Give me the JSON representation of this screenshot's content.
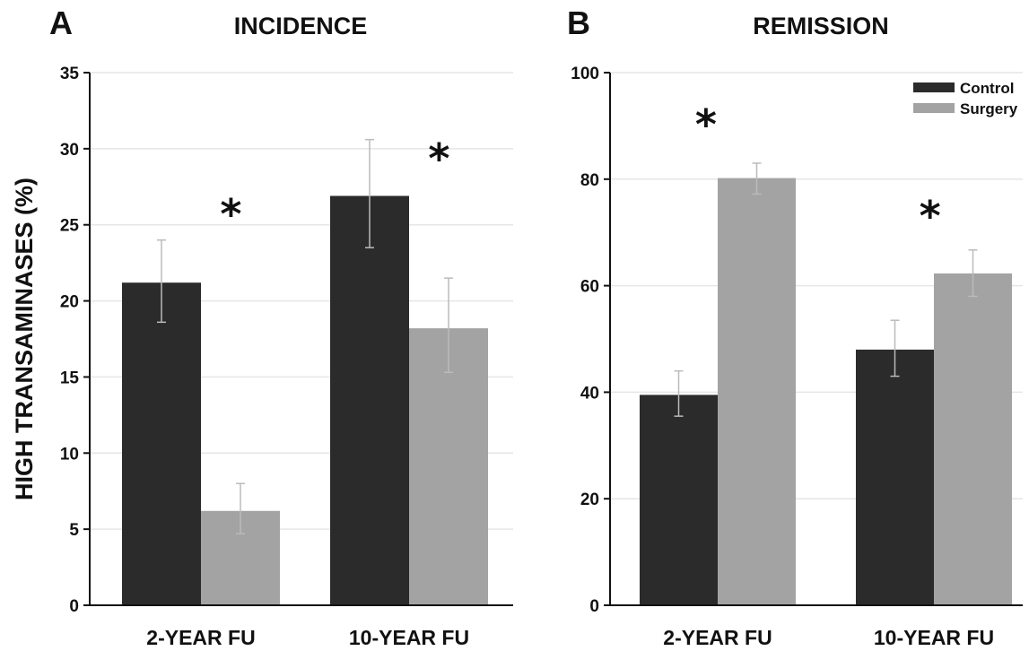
{
  "colors": {
    "control": "#2b2b2b",
    "surgery": "#a3a3a3"
  },
  "chart_data": [
    {
      "type": "bar",
      "panel": "A",
      "title": "INCIDENCE",
      "ylabel": "HIGH TRANSAMINASES (%)",
      "xlabel": "",
      "categories": [
        "2-YEAR FU",
        "10-YEAR FU"
      ],
      "ylim": [
        0,
        35
      ],
      "yticks": [
        0,
        5,
        10,
        15,
        20,
        25,
        30,
        35
      ],
      "grid": true,
      "series": [
        {
          "values": [
            21.2,
            26.9
          ],
          "error_low": [
            18.6,
            23.5
          ],
          "error_high": [
            24.0,
            30.6
          ]
        },
        {
          "values": [
            6.2,
            18.2
          ],
          "error_low": [
            4.7,
            15.3
          ],
          "error_high": [
            8.0,
            21.5
          ]
        }
      ],
      "significance": [
        "*",
        "*"
      ]
    },
    {
      "type": "bar",
      "panel": "B",
      "title": "REMISSION",
      "ylabel": "",
      "xlabel": "",
      "categories": [
        "2-YEAR FU",
        "10-YEAR FU"
      ],
      "ylim": [
        0,
        100
      ],
      "yticks": [
        0,
        20,
        40,
        60,
        80,
        100
      ],
      "grid": true,
      "legend_position": "top-right",
      "series": [
        {
          "name": "Control",
          "values": [
            39.5,
            48.0
          ],
          "error_low": [
            35.5,
            43.0
          ],
          "error_high": [
            44.0,
            53.5
          ]
        },
        {
          "name": "Surgery",
          "values": [
            80.2,
            62.3
          ],
          "error_low": [
            77.2,
            58.0
          ],
          "error_high": [
            83.0,
            66.7
          ]
        }
      ],
      "significance": [
        "*",
        "*"
      ]
    }
  ]
}
